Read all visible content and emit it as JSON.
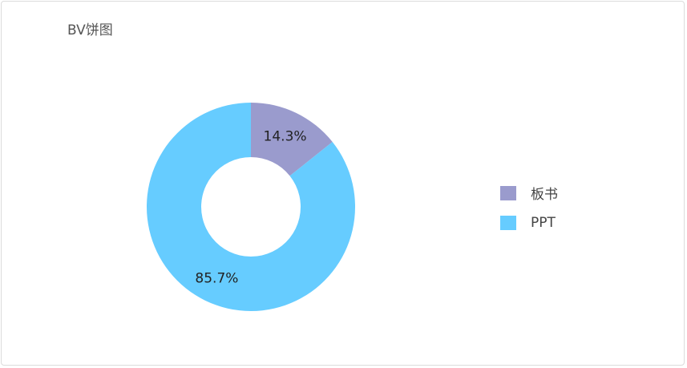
{
  "chart_data": {
    "type": "pie",
    "title": "BV饼图",
    "donut": true,
    "categories": [
      "板书",
      "PPT"
    ],
    "values": [
      14.3,
      85.7
    ],
    "labels": [
      "14.3%",
      "85.7%"
    ],
    "colors": [
      "#9a9bcd",
      "#66ccff"
    ],
    "legend": "right"
  }
}
